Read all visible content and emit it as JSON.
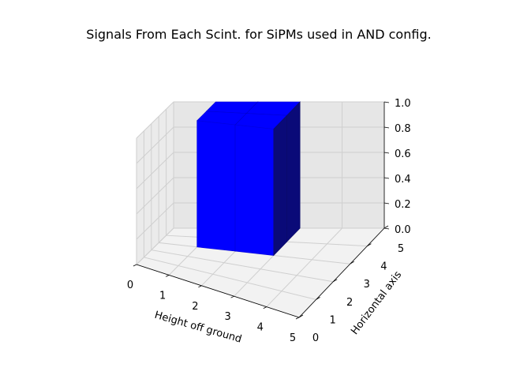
{
  "chart_data": {
    "type": "bar3d",
    "title": "Signals From Each Scint. for SiPMs used in AND config.",
    "xlabel": "Height off ground",
    "ylabel": "Horizontal axis",
    "zlabel": "",
    "xlim": [
      0,
      5
    ],
    "ylim": [
      0,
      5
    ],
    "zlim": [
      0,
      1
    ],
    "x_ticks": [
      "0",
      "1",
      "2",
      "3",
      "4",
      "5"
    ],
    "y_ticks": [
      "0",
      "1",
      "2",
      "3",
      "4",
      "5"
    ],
    "z_ticks": [
      "0.0",
      "0.2",
      "0.4",
      "0.6",
      "0.8",
      "1.0"
    ],
    "grid": true,
    "bar_color": "#0000ff",
    "bars": [
      {
        "x": 1,
        "y": 3,
        "z": 1.0
      },
      {
        "x": 1,
        "y": 4,
        "z": 1.0
      },
      {
        "x": 2,
        "y": 3,
        "z": 1.0
      },
      {
        "x": 2,
        "y": 4,
        "z": 1.0
      }
    ]
  }
}
